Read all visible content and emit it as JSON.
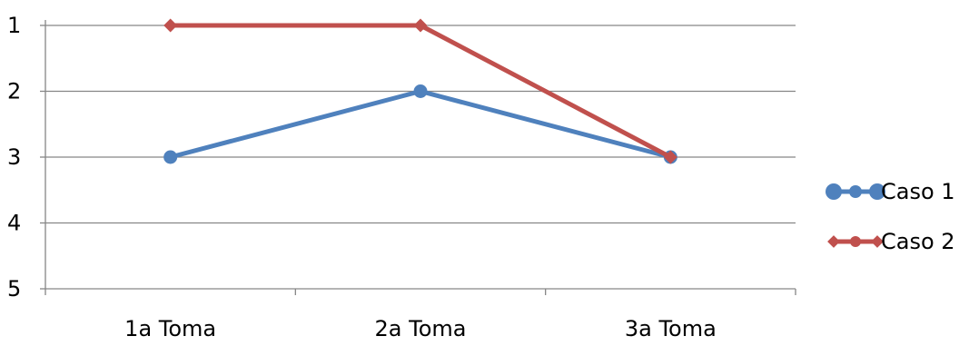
{
  "chart_data": {
    "type": "line",
    "title": "",
    "xlabel": "",
    "ylabel": "",
    "categories": [
      "1a Toma",
      "2a Toma",
      "3a Toma"
    ],
    "y_ticks": [
      "1",
      "2",
      "3",
      "4",
      "5"
    ],
    "ylim": [
      1,
      5
    ],
    "y_inverted": true,
    "grid": "horizontal",
    "legend_position": "right",
    "series": [
      {
        "name": "Caso 1",
        "values": [
          3,
          2,
          3
        ],
        "color": "#4F81BD",
        "marker": "circle"
      },
      {
        "name": "Caso 2",
        "values": [
          1,
          1,
          3
        ],
        "color": "#C0504D",
        "marker": "diamond"
      }
    ]
  }
}
